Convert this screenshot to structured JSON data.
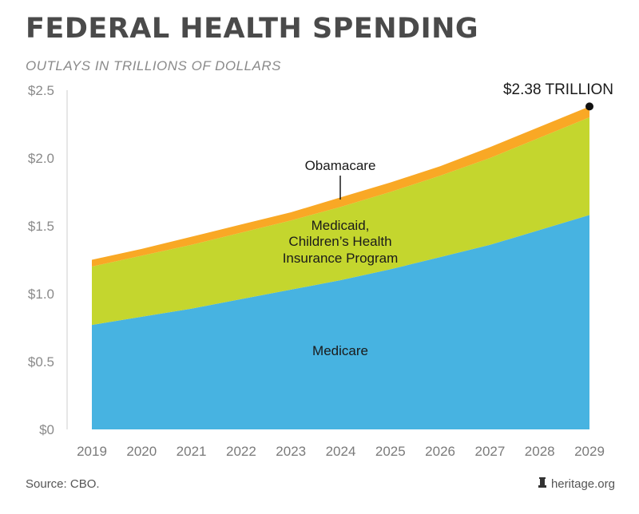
{
  "title": "FEDERAL HEALTH SPENDING",
  "subtitle": "OUTLAYS IN TRILLIONS OF DOLLARS",
  "source": "Source: CBO.",
  "brand": "heritage.org",
  "chart_data": {
    "type": "area",
    "stacked": true,
    "x": [
      2019,
      2020,
      2021,
      2022,
      2023,
      2024,
      2025,
      2026,
      2027,
      2028,
      2029
    ],
    "ylim": [
      0,
      2.5
    ],
    "yticks": [
      0,
      0.5,
      1.0,
      1.5,
      2.0,
      2.5
    ],
    "ytick_labels": [
      "$0",
      "$0.5",
      "$1.0",
      "$1.5",
      "$2.0",
      "$2.5"
    ],
    "grid": false,
    "series": [
      {
        "name": "Medicare",
        "color": "#47b3e1",
        "values": [
          0.77,
          0.83,
          0.89,
          0.96,
          1.03,
          1.1,
          1.18,
          1.27,
          1.36,
          1.47,
          1.58
        ]
      },
      {
        "name": "Medicaid, Children's Health Insurance Program",
        "color": "#c4d62e",
        "values": [
          0.43,
          0.45,
          0.47,
          0.49,
          0.51,
          0.54,
          0.57,
          0.6,
          0.64,
          0.68,
          0.72
        ]
      },
      {
        "name": "Obamacare",
        "color": "#f9a825",
        "values": [
          0.05,
          0.05,
          0.06,
          0.06,
          0.06,
          0.07,
          0.07,
          0.07,
          0.08,
          0.08,
          0.08
        ]
      }
    ],
    "series_labels": [
      "Medicare",
      "Medicaid,",
      "Children’s Health",
      "Insurance Program",
      "Obamacare"
    ],
    "annotation": {
      "text": "$2.38 TRILLION",
      "x": 2029,
      "y": 2.38
    }
  }
}
